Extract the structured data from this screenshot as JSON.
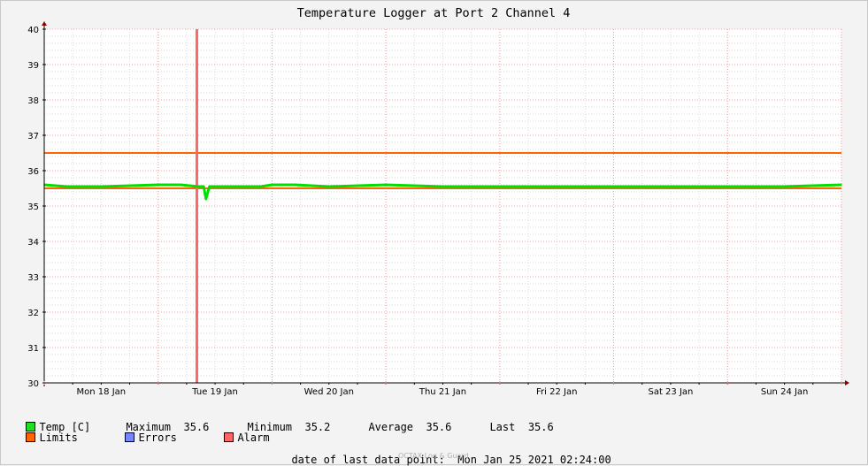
{
  "chart_data": {
    "type": "line",
    "title": "Temperature Logger at Port 2 Channel 4",
    "xlabel": "",
    "ylabel": "",
    "ylim": [
      30,
      40
    ],
    "yticks": [
      30,
      31,
      32,
      33,
      34,
      35,
      36,
      37,
      38,
      39,
      40
    ],
    "x_tick_labels": [
      "Mon 18 Jan",
      "Tue 19 Jan",
      "Wed 20 Jan",
      "Thu 21 Jan",
      "Fri 22 Jan",
      "Sat 23 Jan",
      "Sun 24 Jan"
    ],
    "xlim_days": [
      0,
      7
    ],
    "grid": true,
    "series": [
      {
        "name": "Temp [C]",
        "color": "#00e000",
        "x_days": [
          0,
          0.2,
          0.5,
          1.0,
          1.2,
          1.35,
          1.4,
          1.42,
          1.45,
          1.6,
          1.9,
          2.0,
          2.2,
          2.5,
          3.0,
          3.5,
          4.0,
          4.5,
          5.0,
          5.5,
          6.0,
          6.5,
          7.0
        ],
        "values": [
          35.6,
          35.55,
          35.55,
          35.6,
          35.6,
          35.55,
          35.55,
          35.2,
          35.55,
          35.55,
          35.55,
          35.6,
          35.6,
          35.55,
          35.6,
          35.55,
          35.55,
          35.55,
          35.55,
          35.55,
          35.55,
          35.55,
          35.6
        ]
      },
      {
        "name": "Limits",
        "color": "#ff6600",
        "values": [
          36.5,
          35.5
        ]
      },
      {
        "name": "Alarm",
        "color": "#ff6666",
        "x_days": [
          1.34
        ]
      }
    ]
  },
  "legend": {
    "temp_label": "Temp [C]",
    "max_label": "Maximum",
    "max_value": "35.6",
    "min_label": "Minimum",
    "min_value": "35.2",
    "avg_label": "Average",
    "avg_value": "35.6",
    "last_label": "Last",
    "last_value": "35.6",
    "limits_label": "Limits",
    "errors_label": "Errors",
    "alarm_label": "Alarm",
    "colors": {
      "temp": "#22dd22",
      "limits": "#ff6600",
      "errors": "#7788ff",
      "alarm": "#ff6666"
    }
  },
  "footer": {
    "last_point_label": "date of last data point:",
    "last_point_value": "Mon Jan 25 2021 02:24:00",
    "credit": "OCTAX Log & Guard"
  }
}
